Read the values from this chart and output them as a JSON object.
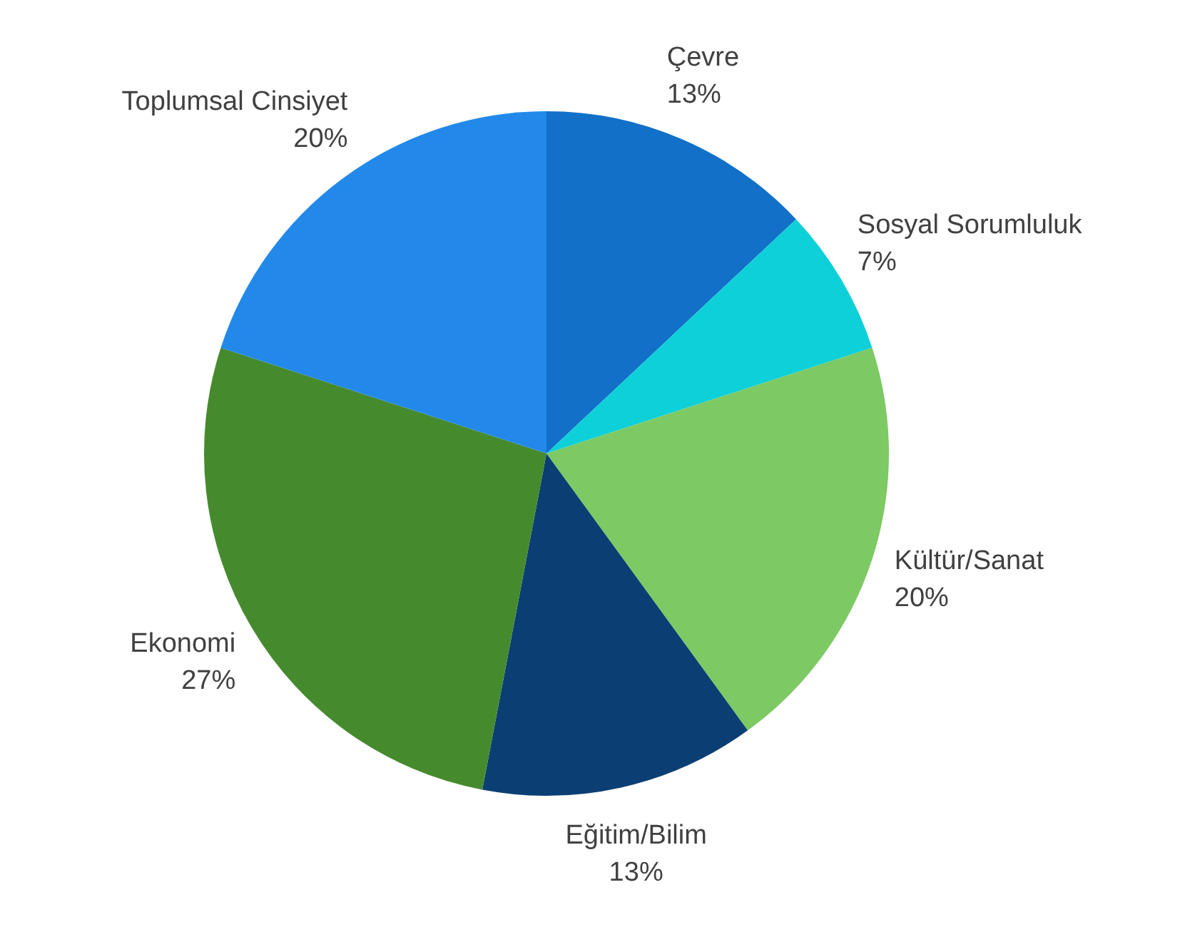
{
  "chart_data": {
    "type": "pie",
    "categories": [
      "Çevre",
      "Sosyal Sorumluluk",
      "Kültür/Sanat",
      "Eğitim/Bilim",
      "Ekonomi",
      "Toplumsal Cinsiyet"
    ],
    "values": [
      13,
      7,
      20,
      13,
      27,
      20
    ],
    "colors": [
      "#1270c8",
      "#0ed0d8",
      "#7dc963",
      "#0b3f73",
      "#468a2e",
      "#2289ea"
    ],
    "value_labels": [
      "13%",
      "7%",
      "20%",
      "13%",
      "27%",
      "20%"
    ]
  }
}
